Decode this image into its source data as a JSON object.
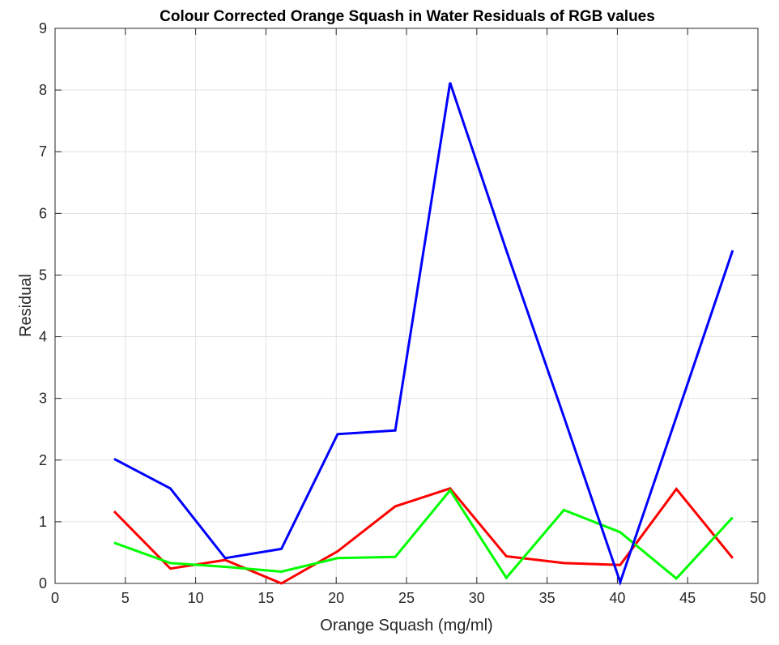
{
  "chart_data": {
    "type": "line",
    "title": "Colour Corrected Orange Squash in Water Residuals of RGB values",
    "xlabel": "Orange Squash (mg/ml)",
    "ylabel": "Residual",
    "xlim": [
      0,
      50
    ],
    "ylim": [
      0,
      9
    ],
    "xticks": [
      0,
      5,
      10,
      15,
      20,
      25,
      30,
      35,
      40,
      45,
      50
    ],
    "yticks": [
      0,
      1,
      2,
      3,
      4,
      5,
      6,
      7,
      8,
      9
    ],
    "grid": true,
    "x": [
      4.2,
      8.2,
      12.1,
      16.1,
      20.1,
      24.2,
      28.1,
      32.1,
      36.2,
      40.2,
      44.2,
      48.2
    ],
    "series": [
      {
        "name": "R",
        "color": "#ff0000",
        "values": [
          1.17,
          0.24,
          0.38,
          0.0,
          0.52,
          1.25,
          1.54,
          0.44,
          0.33,
          0.3,
          1.53,
          0.41
        ]
      },
      {
        "name": "G",
        "color": "#00ff00",
        "values": [
          0.66,
          0.33,
          0.27,
          0.19,
          0.41,
          0.43,
          1.51,
          0.09,
          1.19,
          0.83,
          0.08,
          1.07
        ]
      },
      {
        "name": "B",
        "color": "#0000ff",
        "values": [
          2.02,
          1.54,
          0.41,
          0.56,
          2.42,
          2.48,
          8.12,
          5.4,
          2.7,
          0.02,
          2.7,
          5.4
        ]
      }
    ]
  }
}
